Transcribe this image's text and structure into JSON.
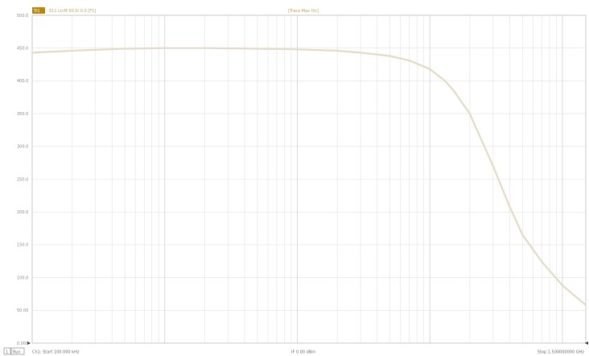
{
  "header": {
    "trace_badge": "Tr1",
    "trace_label": "S11 LinM 50.0/ 0.0 [F1]",
    "center_label": "[Trace Max On]"
  },
  "status": {
    "channel_badge": "1",
    "channel_mode": "Run",
    "start": "Ch1: Start 100.000 kHz",
    "power": "IF 0.00 dBm",
    "stop": "Stop 1.500000000 GHz"
  },
  "colors": {
    "trace": "#e2dcc6",
    "badge": "#b8860b",
    "grid": "#e2e2e2",
    "border": "#bdbdbd"
  },
  "chart_data": {
    "type": "line",
    "x_scale": "log",
    "y_scale": "linear",
    "ylim": [
      0,
      500
    ],
    "yticks": [
      0,
      50,
      100,
      150,
      200,
      250,
      300,
      350,
      400,
      450,
      500
    ],
    "ytick_labels": [
      "0.000",
      "50.00",
      "100.0",
      "150.0",
      "200.0",
      "250.0",
      "300.0",
      "350.0",
      "400.0",
      "450.0",
      "500.0"
    ],
    "xlim_hz": [
      100000,
      1500000000
    ],
    "grid": true,
    "legend": "none",
    "series": [
      {
        "x_hz": [
          100000,
          200000,
          500000,
          1000000,
          2000000,
          5000000,
          10000000,
          20000000,
          30000000,
          50000000,
          70000000,
          100000000,
          130000000,
          150000000,
          200000000,
          300000000,
          400000000,
          500000000,
          700000000,
          1000000000,
          1500000000
        ],
        "y": [
          443,
          446,
          449,
          450,
          450,
          449,
          448,
          446,
          443,
          438,
          431,
          418,
          400,
          386,
          350,
          270,
          208,
          165,
          124,
          88,
          58
        ]
      }
    ]
  }
}
